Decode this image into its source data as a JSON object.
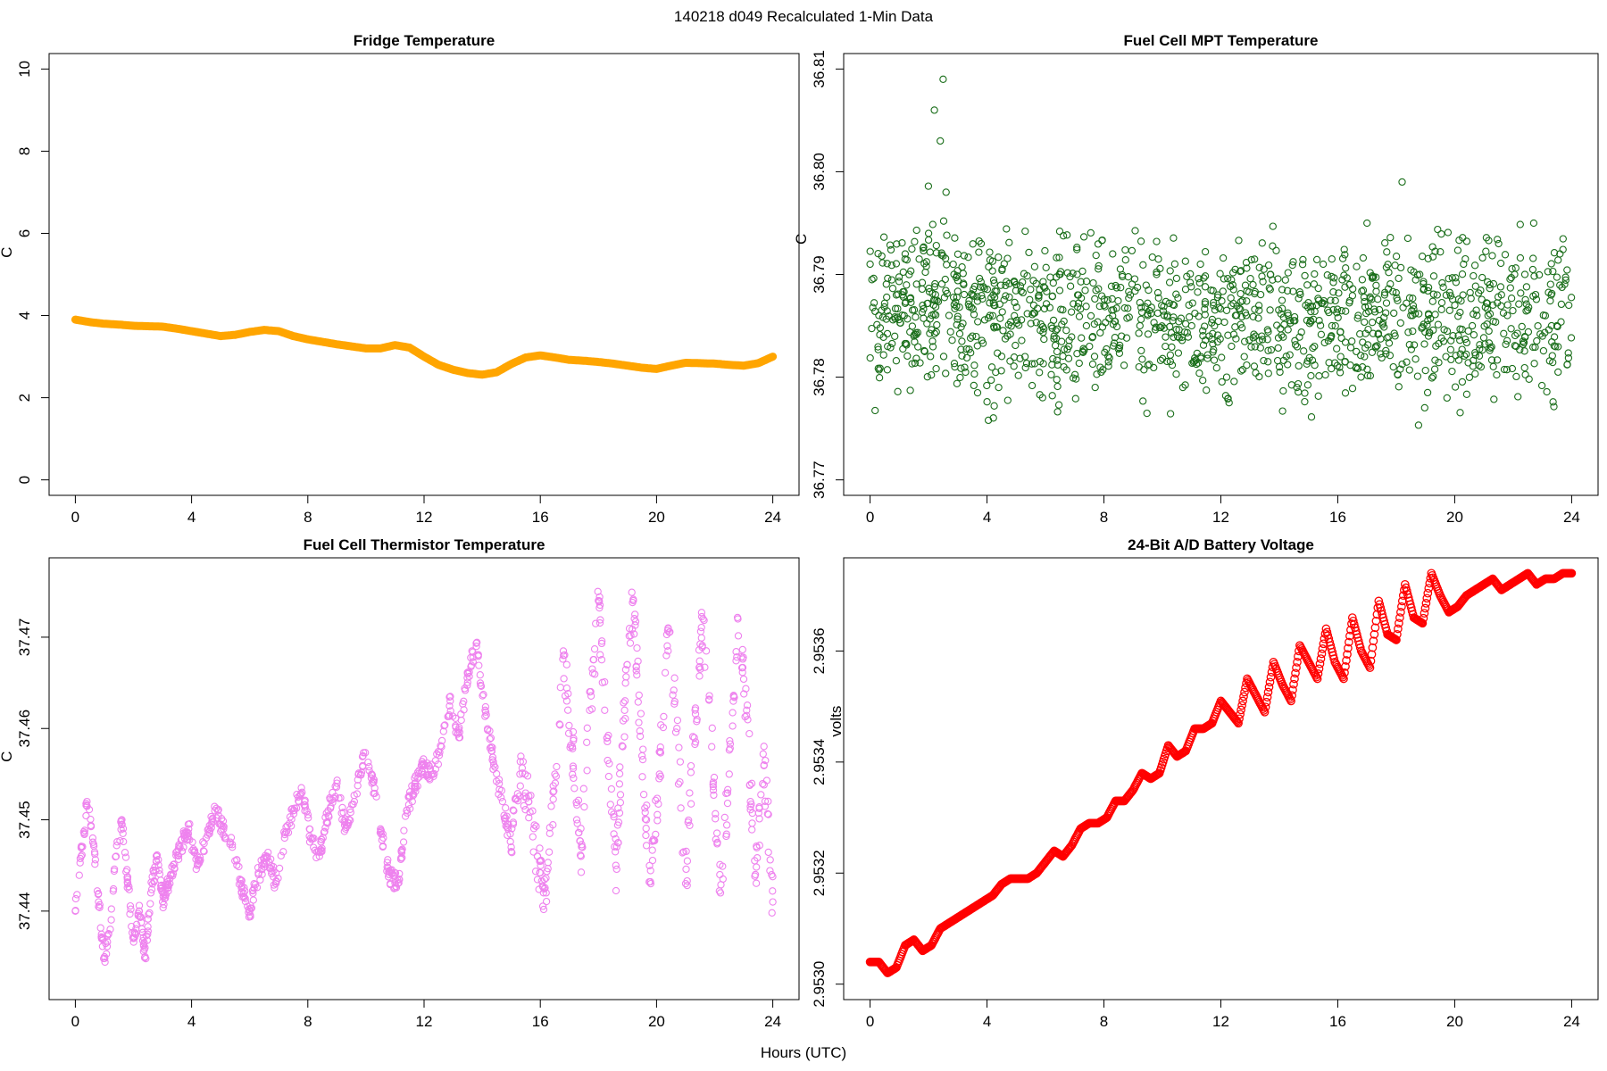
{
  "figure": {
    "title": "140218   d049   Recalculated 1-Min Data",
    "xlabel": "Hours (UTC)"
  },
  "chart_data": [
    {
      "type": "scatter",
      "title": "Fridge Temperature",
      "xlabel": "",
      "ylabel": "C",
      "xlim": [
        0,
        24
      ],
      "ylim": [
        0,
        10
      ],
      "xticks": [
        0,
        4,
        8,
        12,
        16,
        20,
        24
      ],
      "yticks": [
        0,
        2,
        4,
        6,
        8,
        10
      ],
      "ytick_labels": [
        "0",
        "2",
        "4",
        "6",
        "8",
        "10"
      ],
      "y_tick_rotation": "vertical",
      "color": "#FFA500",
      "marker": "filled-thick-line",
      "series": [
        {
          "x": [
            0,
            0.5,
            1,
            1.5,
            2,
            2.5,
            3,
            3.5,
            4,
            4.5,
            5,
            5.5,
            6,
            6.5,
            7,
            7.5,
            8,
            8.5,
            9,
            9.5,
            10,
            10.5,
            11,
            11.5,
            12,
            12.5,
            13,
            13.5,
            14,
            14.5,
            15,
            15.5,
            16,
            16.5,
            17,
            17.5,
            18,
            18.5,
            19,
            19.5,
            20,
            20.5,
            21,
            21.5,
            22,
            22.5,
            23,
            23.5,
            24
          ],
          "y": [
            3.9,
            3.84,
            3.8,
            3.78,
            3.75,
            3.74,
            3.73,
            3.68,
            3.62,
            3.56,
            3.5,
            3.53,
            3.6,
            3.65,
            3.62,
            3.5,
            3.42,
            3.36,
            3.3,
            3.25,
            3.2,
            3.2,
            3.28,
            3.22,
            3.0,
            2.8,
            2.68,
            2.6,
            2.56,
            2.62,
            2.82,
            2.98,
            3.03,
            2.98,
            2.92,
            2.9,
            2.87,
            2.83,
            2.78,
            2.73,
            2.7,
            2.78,
            2.85,
            2.84,
            2.83,
            2.8,
            2.78,
            2.84,
            3.0
          ]
        }
      ]
    },
    {
      "type": "scatter",
      "title": "Fuel Cell MPT Temperature",
      "xlabel": "",
      "ylabel": "C",
      "xlim": [
        0,
        24
      ],
      "ylim": [
        36.77,
        36.81
      ],
      "xticks": [
        0,
        4,
        8,
        12,
        16,
        20,
        24
      ],
      "yticks": [
        36.77,
        36.78,
        36.79,
        36.8,
        36.81
      ],
      "ytick_labels": [
        "36.77",
        "36.78",
        "36.79",
        "36.80",
        "36.81"
      ],
      "color": "#1a6e1a",
      "marker": "open-circle",
      "series": [
        {
          "x": [
            0.0,
            0.3,
            0.6,
            0.9,
            1.2,
            1.5,
            1.8,
            2.0,
            2.2,
            2.4,
            2.5,
            2.6,
            2.7,
            2.9,
            3.2,
            3.5,
            3.8,
            4.1,
            4.4,
            4.7,
            5.0,
            5.3,
            5.6,
            5.9,
            6.2,
            6.5,
            6.8,
            7.1,
            7.4,
            7.7,
            8.0,
            8.3,
            8.6,
            8.9,
            9.2,
            9.5,
            9.8,
            10.1,
            10.4,
            10.7,
            11.0,
            11.3,
            11.6,
            11.9,
            12.2,
            12.5,
            12.8,
            13.1,
            13.4,
            13.7,
            14.0,
            14.3,
            14.6,
            14.9,
            15.2,
            15.5,
            15.8,
            16.1,
            16.4,
            16.7,
            17.0,
            17.3,
            17.6,
            17.9,
            18.2,
            18.5,
            18.8,
            19.1,
            19.4,
            19.7,
            20.0,
            20.3,
            20.6,
            20.9,
            21.2,
            21.5,
            21.8,
            22.1,
            22.4,
            22.7,
            23.0,
            23.3,
            23.6,
            23.9
          ],
          "y": [
            36.791,
            36.786,
            36.783,
            36.788,
            36.792,
            36.784,
            36.787,
            36.794,
            36.806,
            36.803,
            36.809,
            36.798,
            36.786,
            36.781,
            36.789,
            36.784,
            36.793,
            36.786,
            36.779,
            36.784,
            36.789,
            36.782,
            36.787,
            36.778,
            36.785,
            36.79,
            36.783,
            36.788,
            36.785,
            36.779,
            36.787,
            36.792,
            36.784,
            36.788,
            36.781,
            36.786,
            36.79,
            36.783,
            36.787,
            36.779,
            36.785,
            36.791,
            36.784,
            36.788,
            36.78,
            36.786,
            36.782,
            36.789,
            36.784,
            36.79,
            36.781,
            36.786,
            36.779,
            36.787,
            36.783,
            36.791,
            36.785,
            36.782,
            36.789,
            36.786,
            36.795,
            36.783,
            36.788,
            36.781,
            36.799,
            36.786,
            36.79,
            36.784,
            36.788,
            36.782,
            36.787,
            36.791,
            36.785,
            36.781,
            36.789,
            36.793,
            36.786,
            36.783,
            36.79,
            36.795,
            36.784,
            36.788,
            36.792,
            36.787
          ]
        }
      ]
    },
    {
      "type": "scatter",
      "title": "Fuel Cell Thermistor Temperature",
      "xlabel": "",
      "ylabel": "C",
      "xlim": [
        0,
        24
      ],
      "ylim": [
        37.432,
        37.477
      ],
      "xticks": [
        0,
        4,
        8,
        12,
        16,
        20,
        24
      ],
      "yticks": [
        37.44,
        37.45,
        37.46,
        37.47
      ],
      "ytick_labels": [
        "37.44",
        "37.45",
        "37.46",
        "37.47"
      ],
      "color": "#EE82EE",
      "marker": "open-circle",
      "series": [
        {
          "x": [
            0.0,
            0.2,
            0.4,
            0.6,
            0.8,
            1.0,
            1.2,
            1.4,
            1.6,
            1.8,
            2.0,
            2.2,
            2.4,
            2.6,
            2.8,
            3.0,
            3.3,
            3.6,
            3.9,
            4.2,
            4.5,
            4.8,
            5.1,
            5.4,
            5.7,
            6.0,
            6.3,
            6.6,
            6.9,
            7.2,
            7.5,
            7.8,
            8.1,
            8.4,
            8.7,
            9.0,
            9.3,
            9.6,
            9.9,
            10.2,
            10.5,
            10.8,
            11.1,
            11.4,
            11.7,
            12.0,
            12.3,
            12.6,
            12.9,
            13.2,
            13.5,
            13.8,
            14.1,
            14.4,
            14.7,
            15.0,
            15.3,
            15.6,
            15.9,
            16.2,
            16.5,
            16.8,
            17.1,
            17.4,
            17.7,
            18.0,
            18.3,
            18.6,
            18.9,
            19.2,
            19.5,
            19.8,
            20.1,
            20.4,
            20.7,
            21.0,
            21.3,
            21.6,
            21.9,
            22.2,
            22.5,
            22.8,
            23.1,
            23.4,
            23.7,
            24.0
          ],
          "y": [
            37.44,
            37.446,
            37.452,
            37.448,
            37.441,
            37.435,
            37.438,
            37.446,
            37.45,
            37.443,
            37.437,
            37.44,
            37.435,
            37.442,
            37.446,
            37.441,
            37.444,
            37.447,
            37.449,
            37.445,
            37.448,
            37.451,
            37.449,
            37.447,
            37.443,
            37.44,
            37.444,
            37.446,
            37.443,
            37.448,
            37.451,
            37.453,
            37.448,
            37.446,
            37.451,
            37.454,
            37.449,
            37.452,
            37.457,
            37.455,
            37.449,
            37.444,
            37.443,
            37.451,
            37.454,
            37.456,
            37.455,
            37.458,
            37.463,
            37.459,
            37.466,
            37.469,
            37.462,
            37.456,
            37.452,
            37.447,
            37.455,
            37.452,
            37.446,
            37.442,
            37.455,
            37.468,
            37.458,
            37.446,
            37.462,
            37.474,
            37.459,
            37.445,
            37.462,
            37.474,
            37.457,
            37.443,
            37.455,
            37.471,
            37.46,
            37.443,
            37.459,
            37.472,
            37.458,
            37.442,
            37.455,
            37.472,
            37.462,
            37.444,
            37.456,
            37.441
          ]
        }
      ]
    },
    {
      "type": "scatter",
      "title": "24-Bit A/D Battery Voltage",
      "xlabel": "",
      "ylabel": "volts",
      "xlim": [
        0,
        24
      ],
      "ylim": [
        2.953,
        2.95374
      ],
      "xticks": [
        0,
        4,
        8,
        12,
        16,
        20,
        24
      ],
      "yticks": [
        2.953,
        2.9532,
        2.9534,
        2.9536
      ],
      "ytick_labels": [
        "2.9530",
        "2.9532",
        "2.9534",
        "2.9536"
      ],
      "color": "#FF0000",
      "marker": "open-circle-dense",
      "series": [
        {
          "x": [
            0.0,
            0.3,
            0.6,
            0.9,
            1.2,
            1.5,
            1.8,
            2.1,
            2.4,
            2.7,
            3.0,
            3.3,
            3.6,
            3.9,
            4.2,
            4.5,
            4.8,
            5.1,
            5.4,
            5.7,
            6.0,
            6.3,
            6.6,
            6.9,
            7.2,
            7.5,
            7.8,
            8.1,
            8.4,
            8.7,
            9.0,
            9.3,
            9.6,
            9.9,
            10.2,
            10.5,
            10.8,
            11.1,
            11.4,
            11.7,
            12.0,
            12.3,
            12.6,
            12.9,
            13.2,
            13.5,
            13.8,
            14.1,
            14.4,
            14.7,
            15.0,
            15.3,
            15.6,
            15.9,
            16.2,
            16.5,
            16.8,
            17.1,
            17.4,
            17.7,
            18.0,
            18.3,
            18.6,
            18.9,
            19.2,
            19.5,
            19.8,
            20.1,
            20.4,
            20.7,
            21.0,
            21.3,
            21.6,
            21.9,
            22.2,
            22.5,
            22.8,
            23.1,
            23.4,
            23.7,
            24.0
          ],
          "y": [
            2.95304,
            2.95304,
            2.95302,
            2.95303,
            2.95307,
            2.95308,
            2.95306,
            2.95307,
            2.9531,
            2.95311,
            2.95312,
            2.95313,
            2.95314,
            2.95315,
            2.95316,
            2.95318,
            2.95319,
            2.95319,
            2.95319,
            2.9532,
            2.95322,
            2.95324,
            2.95323,
            2.95325,
            2.95328,
            2.95329,
            2.95329,
            2.9533,
            2.95333,
            2.95333,
            2.95335,
            2.95338,
            2.95337,
            2.95338,
            2.95343,
            2.95341,
            2.95342,
            2.95346,
            2.95346,
            2.95347,
            2.95351,
            2.95349,
            2.95347,
            2.95355,
            2.95352,
            2.95349,
            2.95358,
            2.95354,
            2.95351,
            2.95361,
            2.95358,
            2.95355,
            2.95364,
            2.95358,
            2.95355,
            2.95366,
            2.9536,
            2.95357,
            2.95369,
            2.95363,
            2.95362,
            2.95372,
            2.95366,
            2.95365,
            2.95374,
            2.9537,
            2.95367,
            2.95368,
            2.9537,
            2.95371,
            2.95372,
            2.95373,
            2.95371,
            2.95372,
            2.95373,
            2.95374,
            2.95372,
            2.95373,
            2.95373,
            2.95374,
            2.95374
          ]
        }
      ]
    }
  ]
}
